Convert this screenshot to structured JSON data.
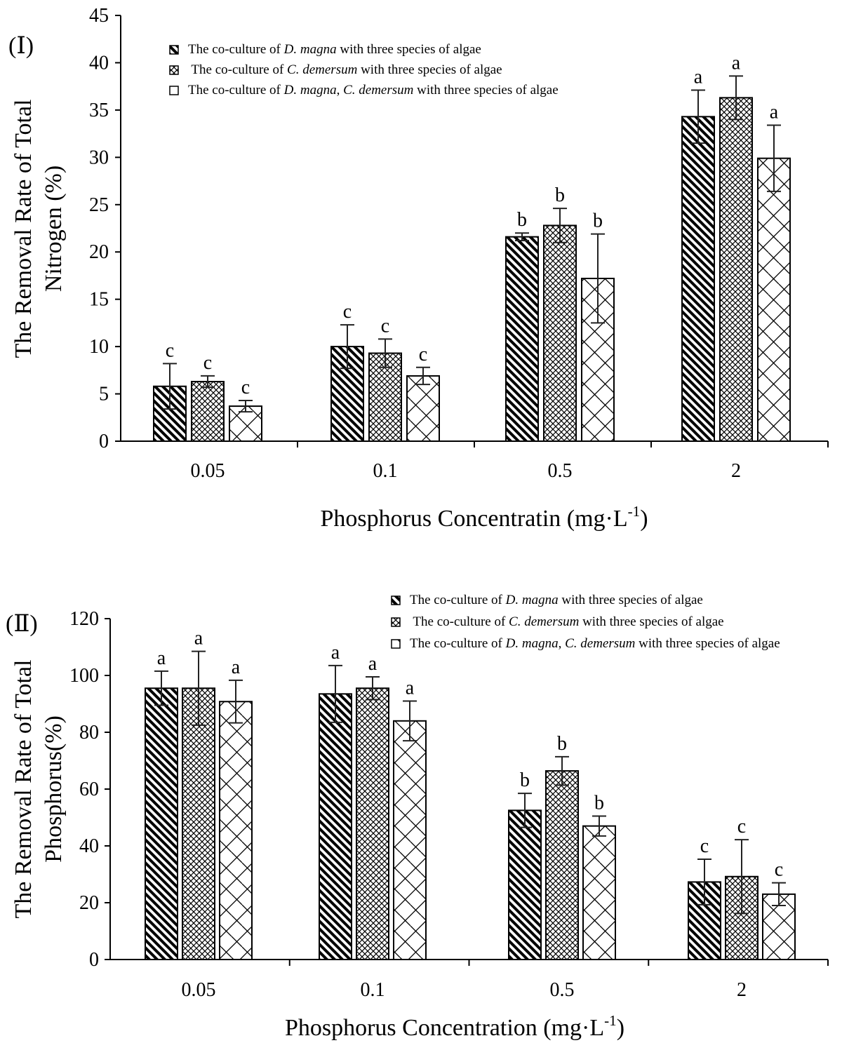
{
  "chart_data": [
    {
      "type": "bar",
      "panel_label": "(Ⅰ)",
      "categories": [
        "0.05",
        "0.1",
        "0.5",
        "2"
      ],
      "xlabel": "Phosphorus Concentratin (mg·L",
      "xlabel_sup": "-1",
      "xlabel_end": ")",
      "ylabel_lines": [
        "The Removal Rate of Total",
        "Nitrogen (%)"
      ],
      "ylim": [
        0,
        45
      ],
      "yticks": [
        0,
        5,
        10,
        15,
        20,
        25,
        30,
        35,
        40,
        45
      ],
      "legend_placement": "top-left",
      "series": [
        {
          "name": "The co-culture of D. magna with three species of algae",
          "legend_parts": [
            {
              "text": "The co-culture of ",
              "italic": false
            },
            {
              "text": "D. magna",
              "italic": true
            },
            {
              "text": " with three species of algae",
              "italic": false
            }
          ],
          "pattern": "hatch-diag",
          "values": [
            5.8,
            10.0,
            21.6,
            34.3
          ],
          "errors": [
            2.4,
            2.3,
            0.4,
            2.8
          ],
          "letters": [
            "c",
            "c",
            "b",
            "a"
          ]
        },
        {
          "name": "The co-culture of C. demersum with three species of algae",
          "legend_parts": [
            {
              "text": " The co-culture of ",
              "italic": false
            },
            {
              "text": "C. demersum",
              "italic": true
            },
            {
              "text": " with three species of algae",
              "italic": false
            }
          ],
          "pattern": "crosshatch",
          "values": [
            6.3,
            9.3,
            22.8,
            36.3
          ],
          "errors": [
            0.6,
            1.5,
            1.8,
            2.3
          ],
          "letters": [
            "c",
            "c",
            "b",
            "a"
          ]
        },
        {
          "name": "The co-culture of D. magna, C. demersum with three species of algae",
          "legend_parts": [
            {
              "text": "The co-culture of ",
              "italic": false
            },
            {
              "text": "D. magna",
              "italic": true
            },
            {
              "text": ", ",
              "italic": false
            },
            {
              "text": "C. demersum",
              "italic": true
            },
            {
              "text": " with three species of algae",
              "italic": false
            }
          ],
          "pattern": "zigzag",
          "values": [
            3.7,
            6.9,
            17.2,
            29.9
          ],
          "errors": [
            0.6,
            0.9,
            4.7,
            3.5
          ],
          "letters": [
            "c",
            "c",
            "b",
            "a"
          ]
        }
      ]
    },
    {
      "type": "bar",
      "panel_label": "(Ⅱ)",
      "categories": [
        "0.05",
        "0.1",
        "0.5",
        "2"
      ],
      "xlabel": "Phosphorus Concentration (mg·L",
      "xlabel_sup": "-1",
      "xlabel_end": ")",
      "ylabel_lines": [
        "The Removal Rate of Total",
        "Phosphorus(%)"
      ],
      "ylim": [
        0,
        120
      ],
      "yticks": [
        0,
        20,
        40,
        60,
        80,
        100,
        120
      ],
      "legend_placement": "top-right",
      "series": [
        {
          "name": "The co-culture of D. magna with three species of algae",
          "legend_parts": [
            {
              "text": "The co-culture of ",
              "italic": false
            },
            {
              "text": "D. magna",
              "italic": true
            },
            {
              "text": " with three species of algae",
              "italic": false
            }
          ],
          "pattern": "hatch-diag",
          "values": [
            95.5,
            93.5,
            52.5,
            27.3
          ],
          "errors": [
            6.0,
            10.0,
            6.0,
            8.0
          ],
          "letters": [
            "a",
            "a",
            "b",
            "c"
          ]
        },
        {
          "name": "The co-culture of C. demersum with three species of algae",
          "legend_parts": [
            {
              "text": " The co-culture of ",
              "italic": false
            },
            {
              "text": "C. demersum",
              "italic": true
            },
            {
              "text": " with three species of algae",
              "italic": false
            }
          ],
          "pattern": "crosshatch",
          "values": [
            95.5,
            95.5,
            66.4,
            29.2
          ],
          "errors": [
            13.0,
            4.0,
            5.0,
            13.0
          ],
          "letters": [
            "a",
            "a",
            "b",
            "c"
          ]
        },
        {
          "name": "The co-culture of D. magna, C. demersum with three species of algae",
          "legend_parts": [
            {
              "text": "The co-culture of ",
              "italic": false
            },
            {
              "text": "D. magna",
              "italic": true
            },
            {
              "text": ", ",
              "italic": false
            },
            {
              "text": "C. demersum",
              "italic": true
            },
            {
              "text": " with three species of algae",
              "italic": false
            }
          ],
          "pattern": "zigzag",
          "values": [
            90.8,
            84.0,
            47.0,
            23.0
          ],
          "errors": [
            7.5,
            7.0,
            3.5,
            4.0
          ],
          "letters": [
            "a",
            "a",
            "b",
            "c"
          ]
        }
      ]
    }
  ]
}
